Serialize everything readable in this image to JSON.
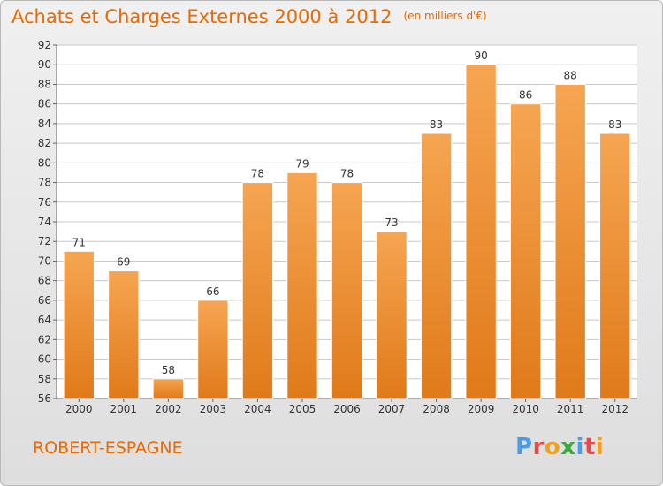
{
  "title": "Achats et Charges Externes 2000 à 2012",
  "unit_label": "(en milliers d'€)",
  "commune": "ROBERT-ESPAGNE",
  "logo": {
    "text": "Proxiti",
    "letters": [
      {
        "ch": "P",
        "color": "#4a9de8"
      },
      {
        "ch": "r",
        "color": "#e84a4a"
      },
      {
        "ch": "o",
        "color": "#f0a020"
      },
      {
        "ch": "x",
        "color": "#3aaa3a"
      },
      {
        "ch": "i",
        "color": "#4a9de8"
      },
      {
        "ch": "t",
        "color": "#e84a4a"
      },
      {
        "ch": "i",
        "color": "#f0a020"
      }
    ]
  },
  "colors": {
    "accent": "#e86a00",
    "bar_top": "#f6a552",
    "bar_bottom": "#e07a1a",
    "grid": "#c8c8c8"
  },
  "chart_data": {
    "type": "bar",
    "title": "Achats et Charges Externes 2000 à 2012",
    "xlabel": "",
    "ylabel": "",
    "categories": [
      "2000",
      "2001",
      "2002",
      "2003",
      "2004",
      "2005",
      "2006",
      "2007",
      "2008",
      "2009",
      "2010",
      "2011",
      "2012"
    ],
    "values": [
      71,
      69,
      58,
      66,
      78,
      79,
      78,
      73,
      83,
      90,
      86,
      88,
      83
    ],
    "ylim": [
      56,
      92
    ],
    "yticks": [
      56,
      58,
      60,
      62,
      64,
      66,
      68,
      70,
      72,
      74,
      76,
      78,
      80,
      82,
      84,
      86,
      88,
      90,
      92
    ],
    "grid": true,
    "legend": "none"
  }
}
